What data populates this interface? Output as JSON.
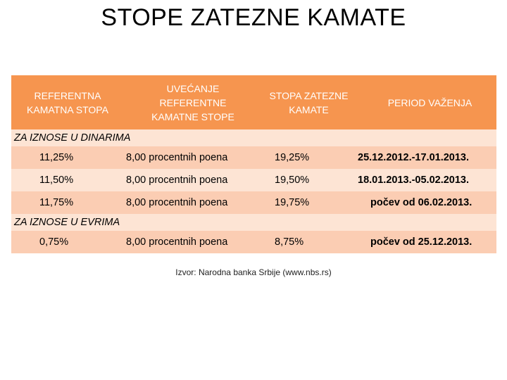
{
  "title": "STOPE  ZATEZNE KAMATE",
  "headers": {
    "h1": "REFERENTNA\nKAMATNA STOPA",
    "h2": "UVEĆANJE\nREFERENTNE\nKAMATNE STOPE",
    "h3": "STOPA ZATEZNE\nKAMATE",
    "h4": "PERIOD VAŽENJA"
  },
  "sections": {
    "dinari": "ZA IZNOSE U DINARIMA",
    "evri": "ZA IZNOSE U EVRIMA"
  },
  "rows": [
    {
      "ref": "11,25%",
      "inc": "8,00 procentnih poena",
      "rate": "19,25%",
      "period": "25.12.2012.-17.01.2013."
    },
    {
      "ref": "11,50%",
      "inc": "8,00 procentnih poena",
      "rate": "19,50%",
      "period": "18.01.2013.-05.02.2013."
    },
    {
      "ref": "11,75%",
      "inc": "8,00 procentnih poena",
      "rate": "19,75%",
      "period": "počev od 06.02.2013."
    },
    {
      "ref": "0,75%",
      "inc": "8,00 procentnih poena",
      "rate": "8,75%",
      "period": "počev od 25.12.2013."
    }
  ],
  "source": "Izvor: Narodna banka Srbije (www.nbs.rs)",
  "colors": {
    "header": "#f6954f",
    "row_dark": "#fbcdb3",
    "row_light": "#fde4d4"
  }
}
